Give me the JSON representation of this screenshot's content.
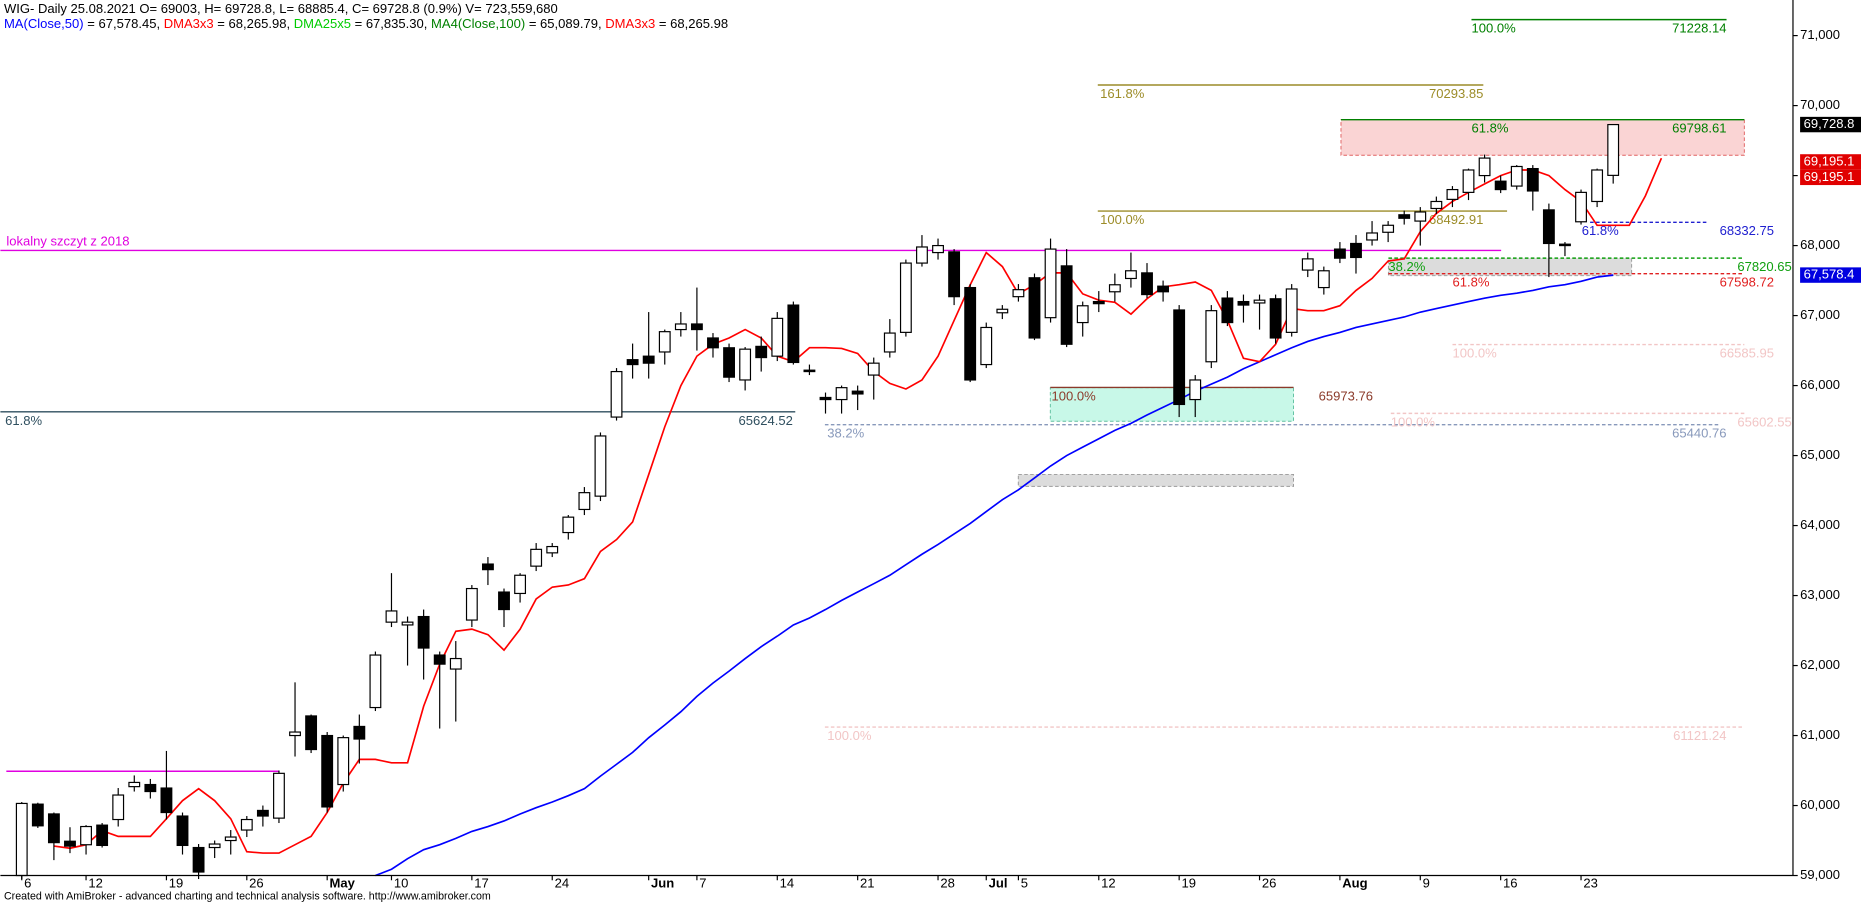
{
  "chart_data": {
    "type": "candlestick",
    "title": "WIG- Daily 25.08.2021 O= 69003, H= 69728.8, L= 68885.4, C= 69728.8 (0.9%) V= 723,559,680",
    "legend": [
      {
        "name": "MA(Close,50)",
        "text": " = 67,578.45, ",
        "color": "#0000ff"
      },
      {
        "name": "DMA3x3",
        "text": " = 68,265.98, ",
        "color": "#ff0000"
      },
      {
        "name": "DMA25x5",
        "text": " = 67,835.30, ",
        "color": "#00cc00"
      },
      {
        "name": "MA4(Close,100)",
        "text": " = 65,089.79, ",
        "color": "#008000"
      },
      {
        "name": "DMA3x3",
        "text": " = 68,265.98",
        "color": "#ff0000"
      }
    ],
    "footer": "Created with AmiBroker - advanced charting and technical analysis software. http://www.amibroker.com",
    "ylim": [
      59000,
      71500
    ],
    "yticks": [
      {
        "value": 59000,
        "label": "59,000"
      },
      {
        "value": 60000,
        "label": "60,000"
      },
      {
        "value": 61000,
        "label": "61,000"
      },
      {
        "value": 62000,
        "label": "62,000"
      },
      {
        "value": 63000,
        "label": "63,000"
      },
      {
        "value": 64000,
        "label": "64,000"
      },
      {
        "value": 65000,
        "label": "65,000"
      },
      {
        "value": 66000,
        "label": "66,000"
      },
      {
        "value": 67000,
        "label": "67,000"
      },
      {
        "value": 68000,
        "label": "68,000"
      },
      {
        "value": 69000,
        "label": "69,000"
      },
      {
        "value": 70000,
        "label": "70,000"
      },
      {
        "value": 71000,
        "label": "71,000"
      }
    ],
    "xticks": [
      {
        "value": 0,
        "label": "6"
      },
      {
        "value": 4,
        "label": "12"
      },
      {
        "value": 9,
        "label": "19"
      },
      {
        "value": 14,
        "label": "26"
      },
      {
        "value": 19,
        "label": "May"
      },
      {
        "value": 23,
        "label": "10"
      },
      {
        "value": 28,
        "label": "17"
      },
      {
        "value": 33,
        "label": "24"
      },
      {
        "value": 39,
        "label": "Jun"
      },
      {
        "value": 42,
        "label": "7"
      },
      {
        "value": 47,
        "label": "14"
      },
      {
        "value": 52,
        "label": "21"
      },
      {
        "value": 57,
        "label": "28"
      },
      {
        "value": 60,
        "label": "Jul"
      },
      {
        "value": 62,
        "label": "5"
      },
      {
        "value": 67,
        "label": "12"
      },
      {
        "value": 72,
        "label": "19"
      },
      {
        "value": 77,
        "label": "26"
      },
      {
        "value": 82,
        "label": "Aug"
      },
      {
        "value": 87,
        "label": "9"
      },
      {
        "value": 92,
        "label": "16"
      },
      {
        "value": 97,
        "label": "23"
      }
    ],
    "open": [
      59000,
      60020,
      59880,
      59490,
      59440,
      59720,
      59800,
      60270,
      60300,
      60250,
      59850,
      59400,
      59400,
      59500,
      59650,
      59930,
      59820,
      61000,
      61280,
      61000,
      60300,
      61130,
      61400,
      62620,
      62580,
      62700,
      62150,
      61950,
      62650,
      63450,
      63050,
      63030,
      63420,
      63610,
      63900,
      64230,
      64420,
      65550,
      66370,
      66420,
      66480,
      66800,
      66880,
      66680,
      66540,
      66080,
      66560,
      66420,
      67150,
      66220,
      65830,
      65800,
      65920,
      66150,
      66480,
      66760,
      67750,
      67900,
      67910,
      67400,
      66300,
      67040,
      67270,
      67540,
      66970,
      67710,
      66900,
      67200,
      67340,
      67530,
      67610,
      67420,
      67080,
      65800,
      66340,
      67250,
      67200,
      67180,
      67240,
      66760,
      67650,
      67400,
      67950,
      68030,
      68080,
      68190,
      68440,
      68350,
      68530,
      68660,
      68760,
      69000,
      68920,
      68850,
      69100,
      68510,
      68020,
      68340,
      68630,
      69003
    ],
    "high": [
      60050,
      60040,
      59900,
      59690,
      59720,
      59750,
      60250,
      60430,
      60380,
      60780,
      59900,
      59450,
      59500,
      59650,
      59850,
      60000,
      60500,
      61760,
      61300,
      61050,
      61000,
      61300,
      62200,
      63320,
      62700,
      62800,
      62200,
      62350,
      63150,
      63550,
      63100,
      63320,
      63750,
      63750,
      64150,
      64550,
      65330,
      66250,
      66600,
      67050,
      66800,
      67050,
      67400,
      66750,
      66600,
      66550,
      66700,
      67050,
      67200,
      66300,
      65900,
      66000,
      66000,
      66400,
      66950,
      67800,
      68150,
      68100,
      67950,
      67450,
      66900,
      67150,
      67450,
      67600,
      68100,
      67950,
      67200,
      67350,
      67600,
      67900,
      67750,
      67500,
      67150,
      66150,
      67150,
      67350,
      67300,
      67300,
      67300,
      67450,
      67900,
      67700,
      68050,
      68150,
      68350,
      68350,
      68500,
      68550,
      68700,
      68850,
      69100,
      69300,
      69000,
      69150,
      69150,
      68600,
      68050,
      68800,
      69100,
      69728.8
    ],
    "low": [
      58950,
      59680,
      59220,
      59320,
      59300,
      59400,
      59700,
      60200,
      60100,
      59800,
      59300,
      58950,
      59250,
      59300,
      59550,
      59700,
      59750,
      60700,
      60750,
      59900,
      60200,
      60600,
      61350,
      62550,
      62000,
      61800,
      61100,
      61200,
      62550,
      63150,
      62550,
      62900,
      63350,
      63550,
      63800,
      64150,
      64350,
      65500,
      66100,
      66100,
      66300,
      66700,
      66500,
      66400,
      66050,
      65930,
      66200,
      66350,
      66300,
      66150,
      65600,
      65600,
      65650,
      65800,
      66400,
      66700,
      67700,
      67800,
      67150,
      66050,
      66250,
      66950,
      67200,
      66650,
      66900,
      66550,
      66700,
      67050,
      67200,
      67400,
      67250,
      67200,
      65550,
      65550,
      66250,
      66850,
      66900,
      66800,
      66600,
      66700,
      67550,
      67300,
      67750,
      67600,
      68000,
      68050,
      68300,
      68000,
      68450,
      68550,
      68650,
      68900,
      68750,
      68800,
      68500,
      67550,
      67850,
      68300,
      68550,
      68885.4
    ],
    "close": [
      60030,
      59710,
      59470,
      59420,
      59700,
      59430,
      60150,
      60330,
      60200,
      59900,
      59430,
      59050,
      59450,
      59550,
      59800,
      59850,
      60460,
      61050,
      60800,
      59980,
      60970,
      60950,
      62150,
      62780,
      62620,
      62250,
      62020,
      62100,
      63100,
      63370,
      62800,
      63290,
      63660,
      63700,
      64120,
      64470,
      65280,
      66200,
      66300,
      66320,
      66770,
      66880,
      66800,
      66540,
      66120,
      66520,
      66400,
      66960,
      66330,
      66200,
      65800,
      65970,
      65880,
      66320,
      66750,
      67750,
      67980,
      68000,
      67270,
      66080,
      66830,
      67090,
      67370,
      66680,
      67950,
      66590,
      67140,
      67170,
      67440,
      67640,
      67300,
      67340,
      65730,
      66080,
      67070,
      66900,
      67150,
      67220,
      66680,
      67380,
      67810,
      67640,
      67820,
      67830,
      68180,
      68290,
      68390,
      68480,
      68630,
      68800,
      69080,
      69250,
      68800,
      69130,
      68780,
      68030,
      68000,
      68760,
      69080,
      69728.8
    ],
    "series": [
      {
        "name": "MA(Close,50)",
        "color": "#0000ff",
        "values": [
          null,
          null,
          null,
          null,
          null,
          null,
          null,
          null,
          null,
          null,
          null,
          null,
          null,
          null,
          null,
          null,
          null,
          null,
          null,
          null,
          null,
          null,
          59000,
          59090,
          59240,
          59370,
          59440,
          59530,
          59630,
          59700,
          59780,
          59880,
          59970,
          60050,
          60140,
          60240,
          60420,
          60590,
          60760,
          60970,
          61150,
          61340,
          61560,
          61750,
          61920,
          62100,
          62270,
          62420,
          62580,
          62680,
          62800,
          62930,
          63050,
          63170,
          63290,
          63440,
          63590,
          63730,
          63880,
          64030,
          64200,
          64370,
          64510,
          64680,
          64850,
          65000,
          65120,
          65240,
          65360,
          65460,
          65580,
          65690,
          65800,
          65920,
          66020,
          66120,
          66240,
          66340,
          66440,
          66540,
          66630,
          66700,
          66760,
          66830,
          66880,
          66930,
          66980,
          67050,
          67100,
          67150,
          67200,
          67250,
          67290,
          67320,
          67360,
          67410,
          67440,
          67490,
          67550,
          67578.45
        ]
      },
      {
        "name": "DMA3x3",
        "color": "#ff0000",
        "values": [
          null,
          null,
          59420,
          59390,
          59440,
          59640,
          59560,
          59560,
          59560,
          59810,
          60070,
          60240,
          60070,
          59810,
          59340,
          59320,
          59320,
          59440,
          59560,
          59900,
          60320,
          60660,
          60660,
          60610,
          60610,
          61420,
          62020,
          62490,
          62520,
          62440,
          62220,
          62520,
          62950,
          63120,
          63150,
          63240,
          63630,
          63800,
          64050,
          64730,
          65410,
          66000,
          66420,
          66590,
          66680,
          66800,
          66680,
          66420,
          66340,
          66540,
          66540,
          66530,
          66460,
          66200,
          66030,
          65950,
          66080,
          66420,
          66930,
          67440,
          67900,
          67700,
          67310,
          67440,
          67610,
          67610,
          67310,
          67220,
          67190,
          67020,
          67240,
          67410,
          67440,
          67480,
          67360,
          66930,
          66390,
          66340,
          66590,
          67100,
          67070,
          67070,
          67140,
          67360,
          67530,
          67780,
          67810,
          68200,
          68460,
          68630,
          68760,
          68880,
          69000,
          69080,
          69080,
          69000,
          68800,
          68630,
          68290,
          68290,
          68290,
          68710,
          69250
        ]
      }
    ],
    "levels": [
      {
        "value": 67930,
        "color": "#e000e0",
        "text": "lokalny szczyt z 2018"
      },
      {
        "value": 60490,
        "color": "#e000e0"
      },
      {
        "value": 65624.52,
        "color": "#2f4f5f",
        "text": "61.8%",
        "value_label": "65624.52"
      },
      {
        "value": 71228.14,
        "color": "#008000",
        "text": "100.0%",
        "value_label": "71228.14"
      },
      {
        "value": 70293.85,
        "color": "#9c8c28",
        "text": "161.8%",
        "value_label": "70293.85"
      },
      {
        "value": 68492.91,
        "color": "#9c8c28",
        "text": "100.0%",
        "value_label": "68492.91"
      },
      {
        "value": 69798.61,
        "color": "#008000",
        "text": "61.8%",
        "value_label": "69798.61"
      },
      {
        "value": 68332.75,
        "color": "#2020d0",
        "dashed": true,
        "text": "61.8%",
        "value_label": "68332.75"
      },
      {
        "value": 67820.65,
        "color": "#10a010",
        "dashed": true,
        "text": "38.2%",
        "value_label": "67820.65"
      },
      {
        "value": 67598.72,
        "color": "#e02020",
        "dashed": true,
        "text": "61.8%",
        "value_label": "67598.72"
      },
      {
        "value": 65973.76,
        "color": "#8b3a2a",
        "text": "100.0%",
        "value_label": "65973.76"
      },
      {
        "value": 65440.76,
        "color": "#8899bb",
        "dashed": true,
        "text": "38.2%",
        "value_label": "65440.76"
      },
      {
        "value": 66585.95,
        "color": "#f2c6c6",
        "dashed": true,
        "text": "100.0%",
        "value_label": "66585.95"
      },
      {
        "value": 65602.55,
        "color": "#f2c6c6",
        "dashed": true,
        "text": "100.0%",
        "value_label": "65602.55"
      },
      {
        "value": 61121.24,
        "color": "#f2c6c6",
        "dashed": true,
        "text": "100.0%",
        "value_label": "61121.24"
      }
    ],
    "zones": [
      {
        "top": 69800,
        "bottom": 69290,
        "color": "#fad4d4",
        "stroke": "#e06060"
      },
      {
        "top": 67820,
        "bottom": 67570,
        "color": "#dcdcdc",
        "stroke": "#999999"
      },
      {
        "top": 65970,
        "bottom": 65490,
        "color": "#c8f8e8",
        "stroke": "#60c0a0"
      },
      {
        "top": 64730,
        "bottom": 64560,
        "color": "#dcdcdc",
        "stroke": "#999999"
      }
    ],
    "price_markers": [
      {
        "value": 69728.8,
        "label": "69,728.8",
        "color": "#000000"
      },
      {
        "value": 69195.1,
        "label": "69,195.1",
        "color": "#e00000"
      },
      {
        "value": 69195.1,
        "label": "69,195.1",
        "color": "#e00000"
      },
      {
        "value": 67578.4,
        "label": "67,578.4",
        "color": "#0000e0"
      }
    ]
  }
}
